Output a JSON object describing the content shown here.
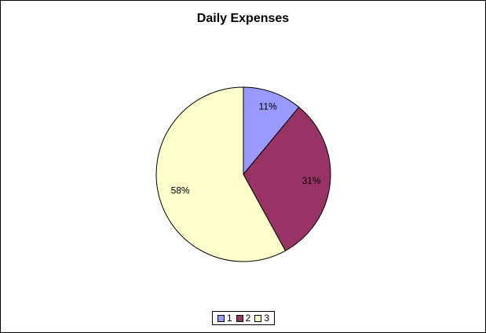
{
  "chart_data": {
    "type": "pie",
    "title": "Daily Expenses",
    "categories": [
      "1",
      "2",
      "3"
    ],
    "values": [
      11,
      31,
      58
    ],
    "data_labels": [
      "11%",
      "31%",
      "58%"
    ],
    "colors": [
      "#9999ff",
      "#993366",
      "#ffffcc"
    ],
    "legend_position": "bottom",
    "start_angle": "12 o'clock",
    "direction": "clockwise"
  }
}
